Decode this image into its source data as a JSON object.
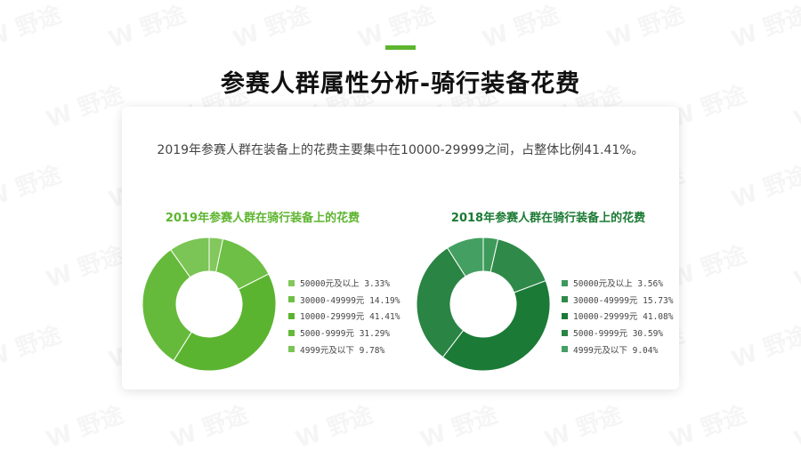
{
  "header": {
    "accent_color": "#5db52f",
    "title": "参赛人群属性分析-骑行装备花费"
  },
  "summary": "2019年参赛人群在装备上的花费主要集中在10000-29999之间，占整体比例41.41%。",
  "watermark_text": "W 野途",
  "chart_data": [
    {
      "type": "pie",
      "donut": true,
      "title": "2019年参赛人群在骑行装备上的花费",
      "title_color": "#5db52f",
      "categories": [
        "50000元及以上",
        "30000-49999元",
        "10000-29999元",
        "5000-9999元",
        "4999元及以下"
      ],
      "values": [
        3.33,
        14.19,
        41.41,
        31.29,
        9.78
      ],
      "value_labels": [
        "3.33%",
        "14.19%",
        "41.41%",
        "31.29%",
        "9.78%"
      ],
      "colors": [
        "#82c85c",
        "#6dbf45",
        "#5bb42f",
        "#66ba3b",
        "#7bc456"
      ]
    },
    {
      "type": "pie",
      "donut": true,
      "title": "2018年参赛人群在骑行装备上的花费",
      "title_color": "#1a7a33",
      "categories": [
        "50000元及以上",
        "30000-49999元",
        "10000-29999元",
        "5000-9999元",
        "4999元及以下"
      ],
      "values": [
        3.56,
        15.73,
        41.08,
        30.59,
        9.04
      ],
      "value_labels": [
        "3.56%",
        "15.73%",
        "41.08%",
        "30.59%",
        "9.04%"
      ],
      "colors": [
        "#3d9a5b",
        "#2f8a49",
        "#1b7a36",
        "#2a8443",
        "#44a062"
      ]
    }
  ]
}
